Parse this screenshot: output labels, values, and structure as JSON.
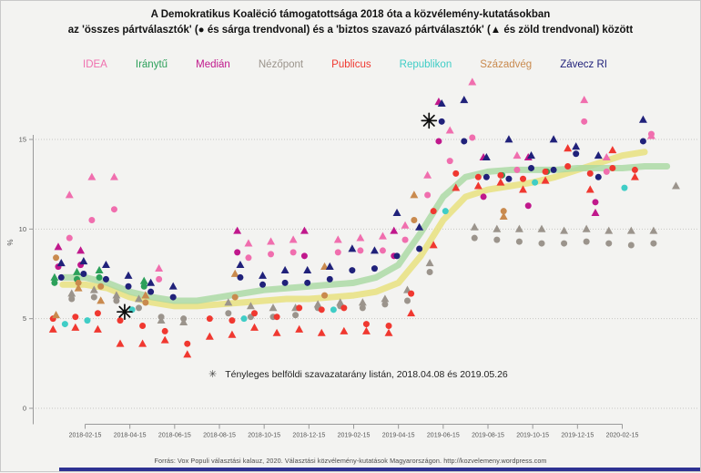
{
  "title": {
    "line1": "A Demokratikus Koalëció támogatottsága 2018 óta a közvélemény-kutatásokban",
    "line2": "az 'összes pártválasztók' (● és sárga trendvonal) és a 'biztos szavazó pártválasztók' (▲ és zöld trendvonal) között"
  },
  "legend": [
    {
      "label": "IDEA",
      "color": "#f06eae"
    },
    {
      "label": "Iránytű",
      "color": "#2ca05a"
    },
    {
      "label": "Medián",
      "color": "#c0188c"
    },
    {
      "label": "Nézőpont",
      "color": "#9b948c"
    },
    {
      "label": "Publicus",
      "color": "#f03830"
    },
    {
      "label": "Republikon",
      "color": "#3fcdc6"
    },
    {
      "label": "Századvég",
      "color": "#c98a4e"
    },
    {
      "label": "Závecz RI",
      "color": "#20217a"
    }
  ],
  "annotation": {
    "symbol": "✳",
    "text": "Tényleges belföldi szavazatarány listán, 2018.04.08 és 2019.05.26"
  },
  "footer": "Forrás: Vox Populi választási kalauz, 2020. Választási közvélemény-kutatások Magyarországon. http://kozvelemeny.wordpress.com",
  "chart_data": {
    "type": "scatter",
    "ylabel": "%",
    "ylim": [
      0,
      18.5
    ],
    "yticks": [
      0,
      5,
      10,
      15
    ],
    "xticks": [
      "2018-02-15",
      "2018-04-15",
      "2018-06-15",
      "2018-08-15",
      "2018-10-15",
      "2018-12-15",
      "2019-02-15",
      "2019-04-15",
      "2019-06-15",
      "2019-08-15",
      "2019-10-15",
      "2019-12-15",
      "2020-02-15"
    ],
    "grid": "dotted horizontal at each ytick",
    "series_note": {
      "all": "összes pártválasztók — circle markers, sárga (yellow) trend",
      "certain": "biztos szavazó pártválasztók — triangle markers, zöld (green) trend"
    },
    "points_format": [
      "date",
      "pollster",
      "all_pct",
      "certain_pct"
    ],
    "points": [
      [
        "2018-01",
        "IDEA",
        9.5,
        11.9
      ],
      [
        "2018-02",
        "IDEA",
        10.5,
        12.9
      ],
      [
        "2018-03",
        "IDEA",
        11.1,
        12.9
      ],
      [
        "2018-05",
        "IDEA",
        7.2,
        7.8
      ],
      [
        "2018-09",
        "IDEA",
        8.4,
        9.2
      ],
      [
        "2018-10",
        "IDEA",
        8.6,
        9.3
      ],
      [
        "2018-11",
        "IDEA",
        8.7,
        9.4
      ],
      [
        "2019-01",
        "IDEA",
        8.7,
        9.4
      ],
      [
        "2019-02",
        "IDEA",
        8.8,
        9.5
      ],
      [
        "2019-03",
        "IDEA",
        8.8,
        9.6
      ],
      [
        "2019-04",
        "IDEA",
        9.4,
        10.2
      ],
      [
        "2019-05",
        "IDEA",
        11.9,
        13.0
      ],
      [
        "2019-06",
        "IDEA",
        13.8,
        15.5
      ],
      [
        "2019-07",
        "IDEA",
        15.1,
        18.2
      ],
      [
        "2019-09",
        "IDEA",
        13.3,
        14.1
      ],
      [
        "2019-12",
        "IDEA",
        16.0,
        17.2
      ],
      [
        "2020-01",
        "IDEA",
        13.2,
        14.0
      ],
      [
        "2020-03",
        "IDEA",
        15.3,
        15.2
      ],
      [
        "2018-01",
        "Iránytű",
        7.0,
        7.3
      ],
      [
        "2018-02",
        "Iránytű",
        7.2,
        7.6
      ],
      [
        "2018-03",
        "Iránytű",
        7.3,
        7.7
      ],
      [
        "2018-05",
        "Iránytű",
        6.8,
        7.1
      ],
      [
        "2019-09",
        "Iránytű",
        13.0,
        null
      ],
      [
        "2019-11",
        "Iránytű",
        13.2,
        null
      ],
      [
        "2018-01",
        "Medián",
        7.9,
        9.0
      ],
      [
        "2018-02",
        "Medián",
        8.0,
        8.8
      ],
      [
        "2018-09",
        "Medián",
        8.7,
        9.9
      ],
      [
        "2018-12",
        "Medián",
        8.5,
        9.9
      ],
      [
        "2019-04",
        "Medián",
        8.5,
        9.9
      ],
      [
        "2019-06",
        "Medián",
        14.9,
        17.1
      ],
      [
        "2019-08",
        "Medián",
        11.8,
        14.0
      ],
      [
        "2019-10",
        "Medián",
        11.3,
        14.0
      ],
      [
        "2020-01",
        "Medián",
        11.5,
        10.9
      ],
      [
        "2018-01",
        "Nézőpont",
        6.1,
        6.4
      ],
      [
        "2018-02",
        "Nézőpont",
        6.2,
        6.6
      ],
      [
        "2018-03",
        "Nézőpont",
        6.0,
        6.3
      ],
      [
        "2018-04",
        "Nézőpont",
        5.6,
        6.1
      ],
      [
        "2018-05",
        "Nézőpont",
        5.1,
        4.9
      ],
      [
        "2018-06",
        "Nézőpont",
        5.0,
        4.8
      ],
      [
        "2018-08",
        "Nézőpont",
        5.3,
        5.9
      ],
      [
        "2018-09",
        "Nézőpont",
        5.1,
        5.7
      ],
      [
        "2018-10",
        "Nézőpont",
        5.1,
        5.6
      ],
      [
        "2018-11",
        "Nézőpont",
        5.2,
        5.6
      ],
      [
        "2018-12",
        "Nézőpont",
        5.6,
        5.8
      ],
      [
        "2019-01",
        "Nézőpont",
        5.7,
        5.9
      ],
      [
        "2019-02",
        "Nézőpont",
        5.6,
        5.9
      ],
      [
        "2019-03",
        "Nézőpont",
        5.8,
        6.1
      ],
      [
        "2019-04",
        "Nézőpont",
        6.0,
        6.6
      ],
      [
        "2019-05",
        "Nézőpont",
        7.6,
        8.1
      ],
      [
        "2019-07",
        "Nézőpont",
        9.5,
        10.1
      ],
      [
        "2019-08",
        "Nézőpont",
        9.4,
        10.0
      ],
      [
        "2019-09",
        "Nézőpont",
        9.3,
        10.0
      ],
      [
        "2019-10",
        "Nézőpont",
        9.2,
        10.0
      ],
      [
        "2019-11",
        "Nézőpont",
        9.2,
        9.9
      ],
      [
        "2019-12",
        "Nézőpont",
        9.3,
        10.0
      ],
      [
        "2020-01",
        "Nézőpont",
        9.2,
        9.9
      ],
      [
        "2020-02",
        "Nézőpont",
        9.1,
        9.9
      ],
      [
        "2020-03",
        "Nézőpont",
        9.2,
        9.9
      ],
      [
        "2020-04",
        "Nézőpont",
        null,
        12.4
      ],
      [
        "2018-01",
        "Publicus",
        5.0,
        4.4
      ],
      [
        "2018-02",
        "Publicus",
        5.1,
        4.5
      ],
      [
        "2018-03",
        "Publicus",
        5.3,
        4.4
      ],
      [
        "2018-04",
        "Publicus",
        4.9,
        3.6
      ],
      [
        "2018-05",
        "Publicus",
        4.6,
        3.6
      ],
      [
        "2018-06",
        "Publicus",
        4.3,
        3.8
      ],
      [
        "2018-07",
        "Publicus",
        3.6,
        3.0
      ],
      [
        "2018-08",
        "Publicus",
        5.0,
        4.0
      ],
      [
        "2018-09",
        "Publicus",
        4.9,
        4.1
      ],
      [
        "2018-10",
        "Publicus",
        5.3,
        4.5
      ],
      [
        "2018-11",
        "Publicus",
        5.1,
        4.2
      ],
      [
        "2018-12",
        "Publicus",
        5.6,
        4.4
      ],
      [
        "2019-01",
        "Publicus",
        5.5,
        4.2
      ],
      [
        "2019-02",
        "Publicus",
        5.6,
        4.3
      ],
      [
        "2019-03",
        "Publicus",
        4.7,
        4.3
      ],
      [
        "2019-04",
        "Publicus",
        4.6,
        4.2
      ],
      [
        "2019-05",
        "Publicus",
        6.4,
        5.3
      ],
      [
        "2019-06",
        "Publicus",
        11.0,
        9.1
      ],
      [
        "2019-07",
        "Publicus",
        13.1,
        12.3
      ],
      [
        "2019-08",
        "Publicus",
        12.9,
        12.4
      ],
      [
        "2019-09",
        "Publicus",
        13.0,
        12.6
      ],
      [
        "2019-10",
        "Publicus",
        12.8,
        12.2
      ],
      [
        "2019-11",
        "Publicus",
        13.2,
        12.7
      ],
      [
        "2019-12",
        "Publicus",
        13.5,
        14.5
      ],
      [
        "2020-01",
        "Publicus",
        13.1,
        12.2
      ],
      [
        "2020-02",
        "Publicus",
        13.4,
        14.4
      ],
      [
        "2020-03",
        "Publicus",
        13.3,
        12.9
      ],
      [
        "2018-01",
        "Republikon",
        4.7,
        null
      ],
      [
        "2018-02",
        "Republikon",
        4.9,
        null
      ],
      [
        "2018-04",
        "Republikon",
        5.5,
        null
      ],
      [
        "2018-09",
        "Republikon",
        5.0,
        null
      ],
      [
        "2019-01",
        "Republikon",
        5.5,
        null
      ],
      [
        "2019-06",
        "Republikon",
        11.0,
        null
      ],
      [
        "2019-10",
        "Republikon",
        12.6,
        null
      ],
      [
        "2020-02",
        "Republikon",
        12.3,
        null
      ],
      [
        "2018-01",
        "Századvég",
        8.4,
        5.2
      ],
      [
        "2018-02",
        "Századvég",
        7.0,
        6.7
      ],
      [
        "2018-03",
        "Századvég",
        6.8,
        6.0
      ],
      [
        "2018-05",
        "Századvég",
        5.9,
        6.3
      ],
      [
        "2018-09",
        "Századvég",
        6.2,
        7.5
      ],
      [
        "2019-01",
        "Századvég",
        6.3,
        7.9
      ],
      [
        "2019-05",
        "Századvég",
        10.5,
        11.9
      ],
      [
        "2019-09",
        "Századvég",
        11.0,
        10.7
      ],
      [
        "2018-01",
        "Závecz RI",
        7.3,
        8.1
      ],
      [
        "2018-02",
        "Závecz RI",
        7.5,
        8.2
      ],
      [
        "2018-03",
        "Závecz RI",
        7.2,
        8.0
      ],
      [
        "2018-04",
        "Závecz RI",
        6.8,
        7.4
      ],
      [
        "2018-05",
        "Závecz RI",
        6.5,
        7.0
      ],
      [
        "2018-06",
        "Závecz RI",
        6.2,
        6.8
      ],
      [
        "2018-09",
        "Závecz RI",
        7.3,
        8.0
      ],
      [
        "2018-10",
        "Závecz RI",
        6.9,
        7.4
      ],
      [
        "2018-11",
        "Závecz RI",
        7.0,
        7.7
      ],
      [
        "2018-12",
        "Závecz RI",
        7.0,
        7.7
      ],
      [
        "2019-01",
        "Závecz RI",
        7.2,
        7.9
      ],
      [
        "2019-02",
        "Závecz RI",
        7.7,
        8.9
      ],
      [
        "2019-03",
        "Závecz RI",
        7.8,
        8.8
      ],
      [
        "2019-04",
        "Závecz RI",
        8.5,
        10.9
      ],
      [
        "2019-05",
        "Závecz RI",
        8.9,
        10.1
      ],
      [
        "2019-06",
        "Závecz RI",
        16.0,
        17.0
      ],
      [
        "2019-07",
        "Závecz RI",
        14.9,
        17.2
      ],
      [
        "2019-08",
        "Závecz RI",
        12.9,
        14.0
      ],
      [
        "2019-09",
        "Závecz RI",
        12.8,
        15.0
      ],
      [
        "2019-10",
        "Závecz RI",
        13.4,
        14.1
      ],
      [
        "2019-11",
        "Závecz RI",
        13.3,
        15.0
      ],
      [
        "2019-12",
        "Závecz RI",
        14.2,
        14.6
      ],
      [
        "2020-01",
        "Závecz RI",
        12.9,
        14.1
      ],
      [
        "2020-03",
        "Závecz RI",
        14.9,
        16.1
      ]
    ],
    "trend": {
      "all_color": "#e8e07a",
      "certain_color": "#a9d9a2",
      "x": [
        "2018-01",
        "2018-02",
        "2018-03",
        "2018-04",
        "2018-05",
        "2018-06",
        "2018-07",
        "2018-08",
        "2018-09",
        "2018-10",
        "2018-11",
        "2018-12",
        "2019-01",
        "2019-02",
        "2019-03",
        "2019-04",
        "2019-05",
        "2019-06",
        "2019-07",
        "2019-08",
        "2019-09",
        "2019-10",
        "2019-11",
        "2019-12",
        "2020-01",
        "2020-02",
        "2020-03",
        "2020-04"
      ],
      "all": [
        6.9,
        6.9,
        6.7,
        6.2,
        5.9,
        5.7,
        5.7,
        5.8,
        5.9,
        6.0,
        6.1,
        6.1,
        6.2,
        6.3,
        6.5,
        7.0,
        8.5,
        10.5,
        11.8,
        12.2,
        12.4,
        12.6,
        12.9,
        13.3,
        13.7,
        14.1,
        14.3,
        null
      ],
      "certain": [
        7.3,
        7.3,
        7.0,
        6.5,
        6.2,
        6.0,
        6.0,
        6.2,
        6.4,
        6.6,
        6.7,
        6.8,
        6.9,
        7.0,
        7.3,
        8.0,
        9.8,
        11.8,
        12.9,
        13.2,
        13.3,
        13.3,
        13.3,
        13.4,
        13.4,
        13.4,
        13.5,
        13.5
      ]
    },
    "election_markers": [
      {
        "date": "2018-04-08",
        "value": 5.38
      },
      {
        "date": "2019-05-26",
        "value": 16.05
      }
    ]
  }
}
